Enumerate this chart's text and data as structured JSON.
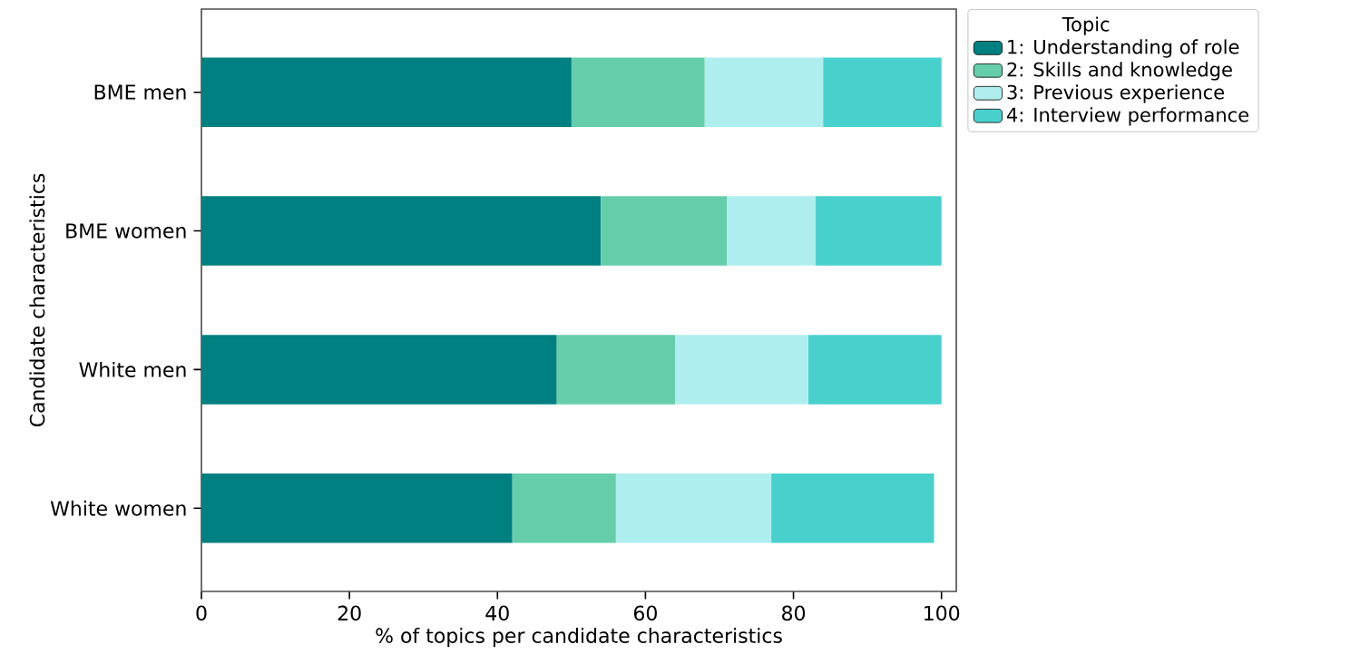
{
  "chart_data": {
    "type": "bar",
    "orientation": "horizontal",
    "stacked": true,
    "categories": [
      "BME men",
      "BME women",
      "White men",
      "White women"
    ],
    "xlabel": "% of topics per candidate characteristics",
    "ylabel": "Candidate characteristics",
    "legend_title": "Topic",
    "legend": "top right",
    "xlim": [
      0,
      102
    ],
    "xticks": [
      0,
      20,
      40,
      60,
      80,
      100
    ],
    "series": [
      {
        "name": "1: Understanding of role",
        "color": "#008080",
        "values": [
          50,
          54,
          48,
          42
        ]
      },
      {
        "name": "2: Skills and knowledge",
        "color": "#66cdaa",
        "values": [
          18,
          17,
          16,
          14
        ]
      },
      {
        "name": "3: Previous experience",
        "color": "#afeeee",
        "values": [
          16,
          12,
          18,
          21
        ]
      },
      {
        "name": "4: Interview performance",
        "color": "#48d1cc",
        "values": [
          16,
          17,
          18,
          22
        ]
      }
    ]
  }
}
